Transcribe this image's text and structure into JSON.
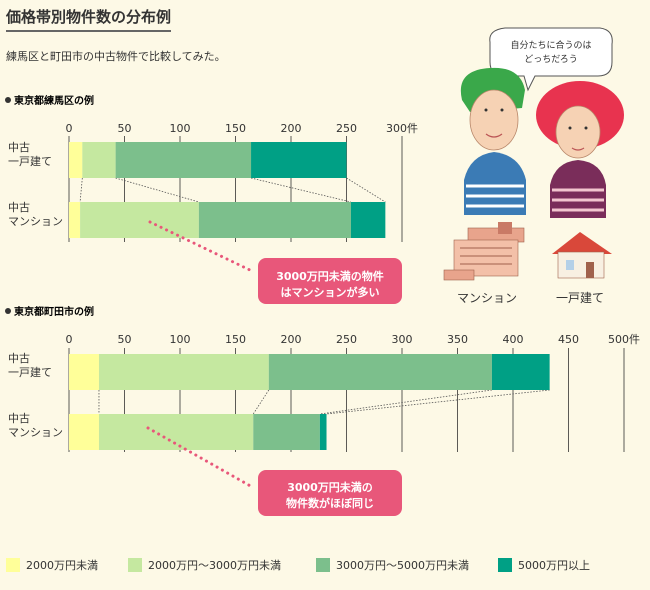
{
  "header": {
    "title": "価格帯別物件数の分布例",
    "subtitle": "練馬区と町田市の中古物件で比較してみた。"
  },
  "legend": [
    {
      "name": "2000万円未満",
      "color": "#ffff99"
    },
    {
      "name": "2000万円〜3000万円未満",
      "color": "#c5e8a0"
    },
    {
      "name": "3000万円〜5000万円未満",
      "color": "#7cbf8c"
    },
    {
      "name": "5000万円以上",
      "color": "#00a085"
    }
  ],
  "chart_data": [
    {
      "type": "bar",
      "orientation": "horizontal",
      "stacked": true,
      "title": "東京都練馬区の例",
      "xlim": [
        0,
        300
      ],
      "ticks": [
        "0",
        "50",
        "100",
        "150",
        "200",
        "250",
        "300件"
      ],
      "tick_values": [
        0,
        50,
        100,
        150,
        200,
        250,
        300
      ],
      "categories": [
        [
          "中古",
          "一戸建て"
        ],
        [
          "中古",
          "マンション"
        ]
      ],
      "series": [
        {
          "name": "2000万円未満",
          "values": [
            12,
            10
          ]
        },
        {
          "name": "2000万円〜3000万円未満",
          "values": [
            30,
            107
          ]
        },
        {
          "name": "3000万円〜5000万円未満",
          "values": [
            122,
            137
          ]
        },
        {
          "name": "5000万円以上",
          "values": [
            86,
            31
          ]
        }
      ],
      "annotation": {
        "lines": [
          "3000万円未満の物件",
          "はマンションが多い"
        ],
        "color": "#e8577a"
      }
    },
    {
      "type": "bar",
      "orientation": "horizontal",
      "stacked": true,
      "title": "東京都町田市の例",
      "xlim": [
        0,
        500
      ],
      "ticks": [
        "0",
        "50",
        "100",
        "150",
        "200",
        "250",
        "300",
        "350",
        "400",
        "450",
        "500件"
      ],
      "tick_values": [
        0,
        50,
        100,
        150,
        200,
        250,
        300,
        350,
        400,
        450,
        500
      ],
      "categories": [
        [
          "中古",
          "一戸建て"
        ],
        [
          "中古",
          "マンション"
        ]
      ],
      "series": [
        {
          "name": "2000万円未満",
          "values": [
            27,
            27
          ]
        },
        {
          "name": "2000万円〜3000万円未満",
          "values": [
            153,
            139
          ]
        },
        {
          "name": "3000万円〜5000万円未満",
          "values": [
            201,
            60
          ]
        },
        {
          "name": "5000万円以上",
          "values": [
            52,
            6
          ]
        }
      ],
      "annotation": {
        "lines": [
          "3000万円未満の",
          "物件数がほぼ同じ"
        ],
        "color": "#e8577a"
      }
    }
  ],
  "illustration": {
    "speech_lines": [
      "自分たちに合うのは",
      "どっちだろう"
    ],
    "captions": [
      "マンション",
      "一戸建て"
    ]
  }
}
